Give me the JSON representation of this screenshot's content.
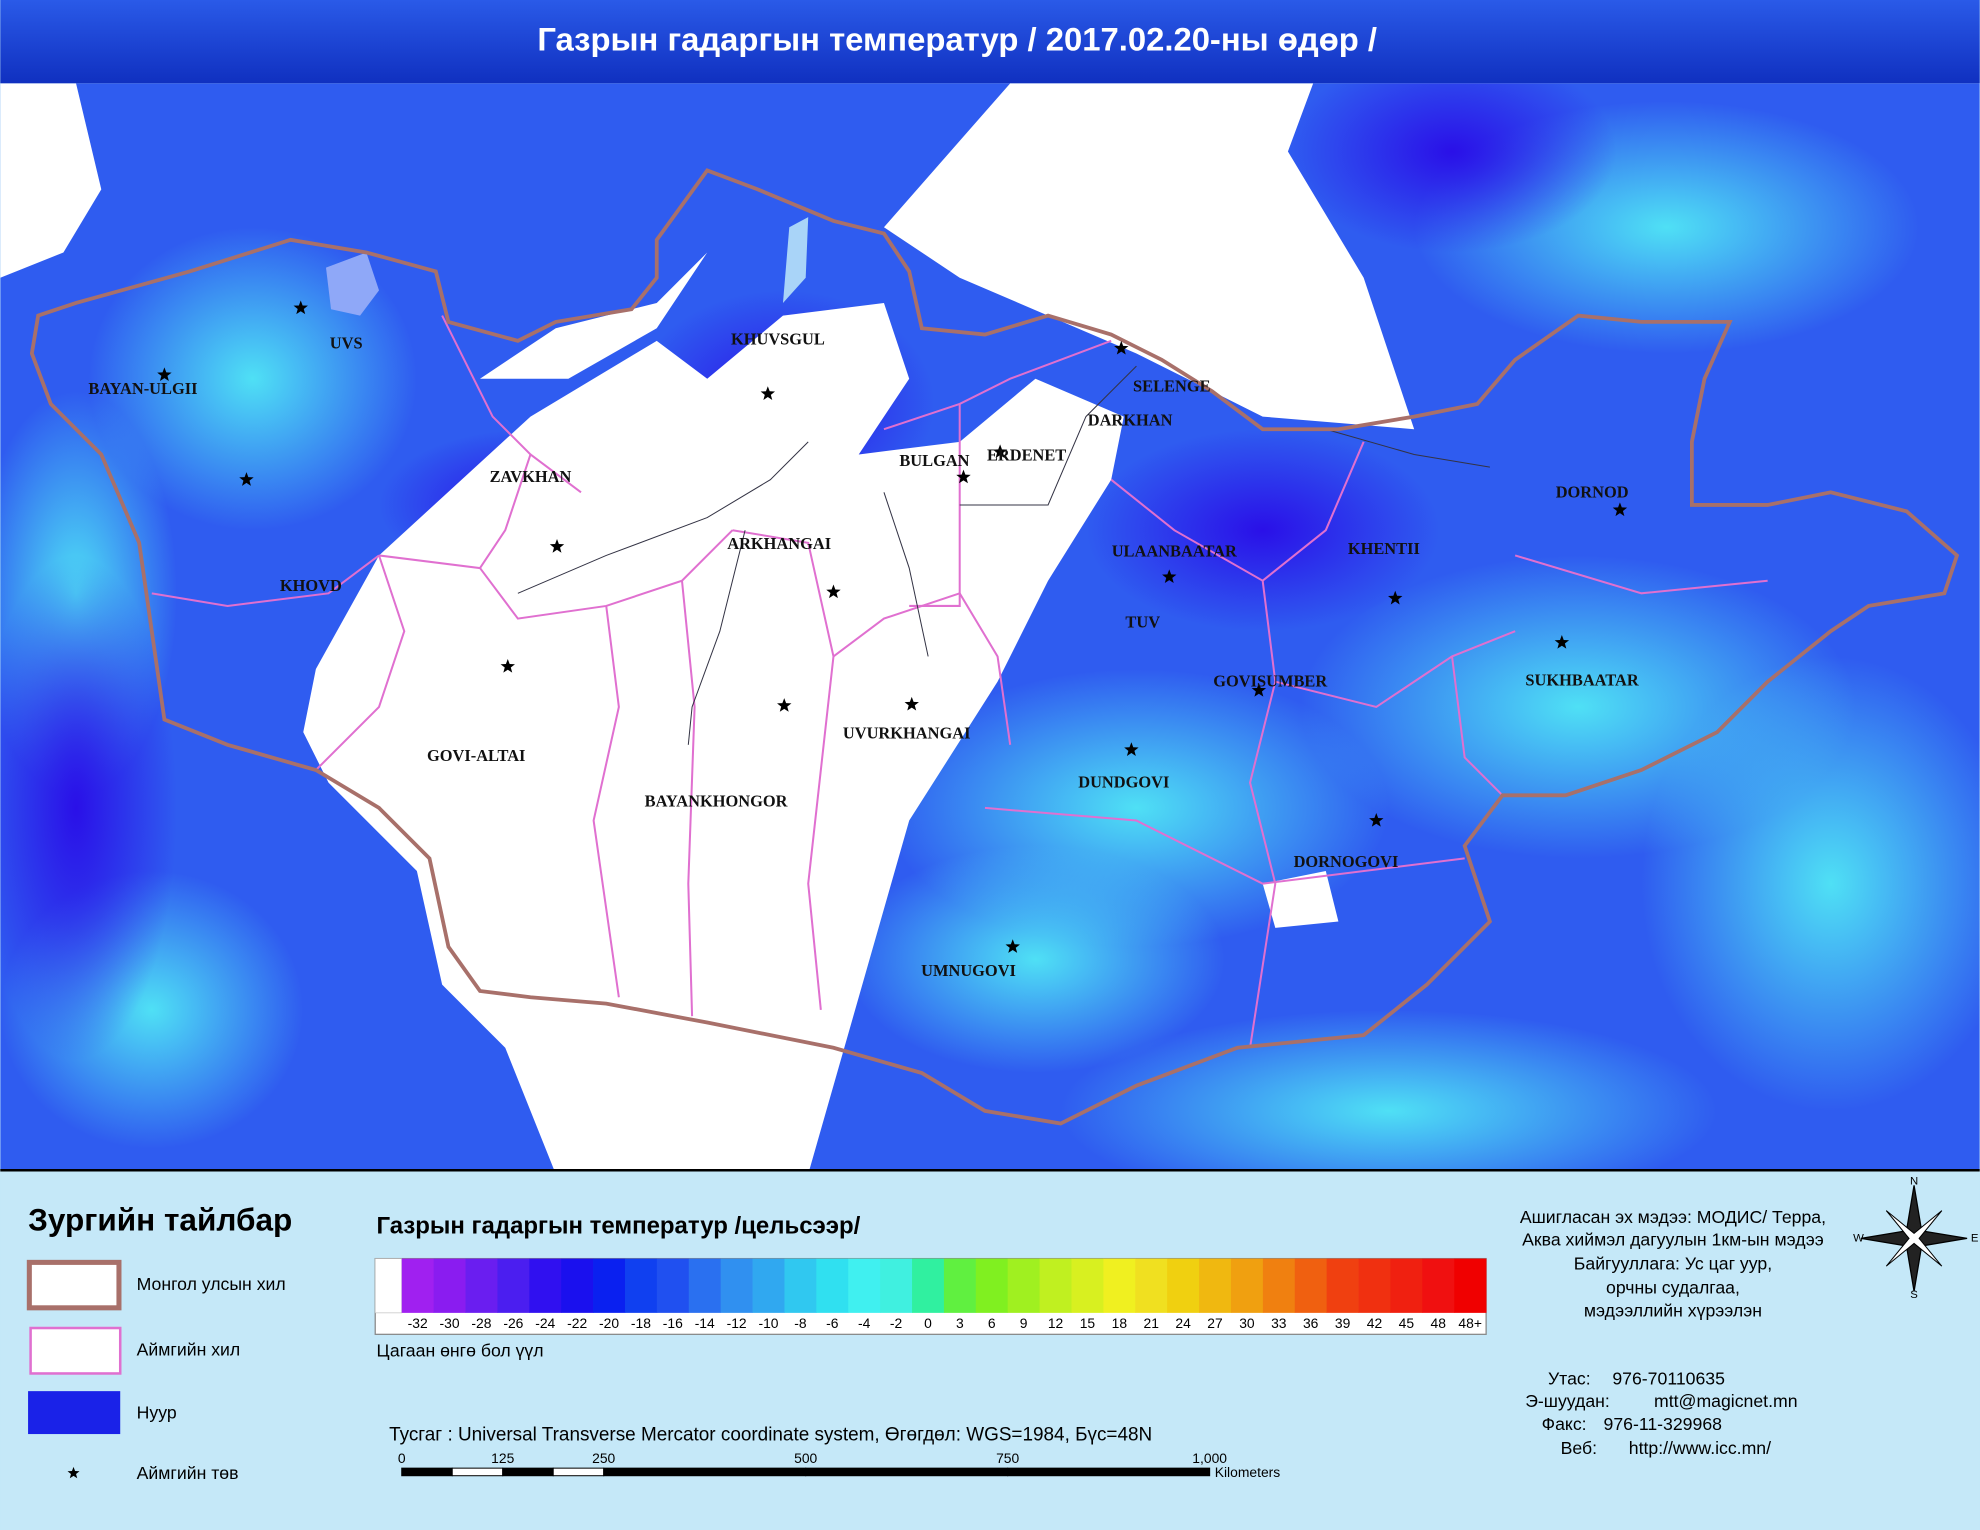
{
  "header": {
    "title": "Газрын гадаргын температур / 2017.02.20-ны өдөр /"
  },
  "map": {
    "labels": [
      "UVS",
      "BAYAN-ULGII",
      "KHUVSGUL",
      "SELENGE",
      "DARKHAN",
      "BULGAN",
      "ERDENET",
      "ZAVKHAN",
      "DORNOD",
      "ARKHANGAI",
      "ULAANBAATAR",
      "KHENTII",
      "KHOVD",
      "TUV",
      "GOVISUMBER",
      "SUKHBAATAR",
      "UVURKHANGAI",
      "GOVI-ALTAI",
      "DUNDGOVI",
      "BAYANKHONGOR",
      "DORNOGOVI",
      "UMNUGOVI"
    ]
  },
  "legend": {
    "title": "Зургийн тайлбар",
    "items": [
      "Монгол улсын хил",
      "Аймгийн хил",
      "Нуур",
      "Аймгийн төв"
    ]
  },
  "colorbar": {
    "title": "Газрын гадаргын температур /цельсээр/",
    "labels": [
      "-32",
      "-30",
      "-28",
      "-26",
      "-24",
      "-22",
      "-20",
      "-18",
      "-16",
      "-14",
      "-12",
      "-10",
      "-8",
      "-6",
      "-4",
      "-2",
      "0",
      "3",
      "6",
      "9",
      "12",
      "15",
      "18",
      "21",
      "24",
      "27",
      "30",
      "33",
      "36",
      "39",
      "42",
      "45",
      "48",
      "48+"
    ],
    "colors": [
      "#a020f0",
      "#8a1cf0",
      "#6a1ef0",
      "#4b1ef0",
      "#3010f0",
      "#1a10ee",
      "#0a20f0",
      "#1040f0",
      "#2050f0",
      "#2a70f0",
      "#3090f0",
      "#30a8f0",
      "#30c8f0",
      "#30e0f0",
      "#40f0f0",
      "#40f0e0",
      "#30f0a0",
      "#60f040",
      "#80f020",
      "#a0f020",
      "#c0f020",
      "#d8f020",
      "#f0f020",
      "#f0e020",
      "#f0d010",
      "#f0b810",
      "#f0a010",
      "#f08010",
      "#f06010",
      "#f04010",
      "#f03010",
      "#f02010",
      "#f01010",
      "#f00000"
    ],
    "note": "Цагаан өнгө бол үүл"
  },
  "projection": "Тусгаг : Universal Transverse Mercator coordinate system, Өгөгдөл: WGS=1984, Бүс=48N",
  "scale": {
    "labels": [
      "0",
      "125",
      "250",
      "500",
      "750",
      "1,000"
    ],
    "unit": "Kilometers"
  },
  "source": [
    "Ашигласан эх мэдээ: МОДИС/ Терра,",
    "Аква хиймэл дагуулын 1км-ын мэдээ",
    "Байгууллага: Ус цаг уур,",
    "орчны судалгаа,",
    "мэдээллийн хүрээлэн"
  ],
  "contacts": [
    {
      "label": "Утас:",
      "value": "976-70110635"
    },
    {
      "label": "Э-шуудан:",
      "value": "mtt@magicnet.mn"
    },
    {
      "label": "Факс:",
      "value": "976-11-329968"
    },
    {
      "label": "Веб:",
      "value": "http://www.icc.mn/"
    }
  ],
  "compass": {
    "n": "N",
    "e": "E",
    "s": "S",
    "w": "W"
  }
}
